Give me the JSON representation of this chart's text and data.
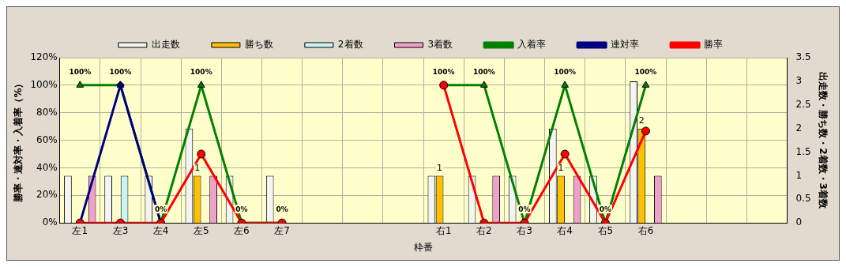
{
  "chart_data": {
    "type": "bar",
    "xlabel": "枠番",
    "ylabel": "勝率・連対率・入着率（%）",
    "y2label": "出走数・勝ち数・2着数・3着数",
    "categories": [
      "左1",
      "左3",
      "左4",
      "左5",
      "左6",
      "左7",
      null,
      null,
      null,
      "右1",
      "右2",
      "右3",
      "右4",
      "右5",
      "右6",
      null,
      null,
      null
    ],
    "series": [
      {
        "name": "出走数",
        "axis": "y2",
        "color": "#f4f4f4",
        "values": [
          1,
          1,
          1,
          2,
          1,
          1,
          null,
          null,
          null,
          1,
          1,
          1,
          2,
          1,
          3,
          null,
          null,
          null
        ]
      },
      {
        "name": "勝ち数",
        "axis": "y2",
        "color": "#ffc000",
        "values": [
          0,
          0,
          0,
          1,
          0,
          0,
          null,
          null,
          null,
          1,
          0,
          0,
          1,
          0,
          2,
          null,
          null,
          null
        ],
        "value_labels": [
          null,
          null,
          null,
          "1",
          null,
          null,
          null,
          null,
          null,
          "1",
          null,
          null,
          "1",
          null,
          "2",
          null,
          null,
          null
        ]
      },
      {
        "name": "2着数",
        "axis": "y2",
        "color": "#c8f4f4",
        "values": [
          0,
          1,
          0,
          0,
          0,
          0,
          null,
          null,
          null,
          0,
          0,
          0,
          0,
          0,
          0,
          null,
          null,
          null
        ]
      },
      {
        "name": "3着数",
        "axis": "y2",
        "color": "#f0a0cc",
        "values": [
          1,
          0,
          0,
          1,
          0,
          0,
          null,
          null,
          null,
          0,
          1,
          0,
          1,
          0,
          1,
          null,
          null,
          null
        ]
      },
      {
        "name": "入着率",
        "type": "line",
        "axis": "y",
        "color": "#008000",
        "marker": "triangle",
        "values": [
          100,
          100,
          0,
          100,
          0,
          0,
          null,
          null,
          null,
          100,
          100,
          0,
          100,
          0,
          100,
          null,
          null,
          null
        ],
        "value_labels": [
          "100%",
          "100%",
          "0%",
          "100%",
          "0%",
          "0%",
          null,
          null,
          null,
          "100%",
          "100%",
          "0%",
          "100%",
          "0%",
          "100%",
          null,
          null,
          null
        ]
      },
      {
        "name": "連対率",
        "type": "line",
        "axis": "y",
        "color": "#000080",
        "marker": "diamond",
        "values": [
          0,
          100,
          0,
          null,
          null,
          null,
          null,
          null,
          null,
          null,
          null,
          null,
          null,
          null,
          null,
          null,
          null,
          null
        ]
      },
      {
        "name": "勝率",
        "type": "line",
        "axis": "y",
        "color": "#ff0000",
        "marker": "circle",
        "values": [
          0,
          0,
          0,
          50,
          0,
          0,
          null,
          null,
          null,
          100,
          0,
          0,
          50,
          0,
          66.7,
          null,
          null,
          null
        ]
      }
    ],
    "ylim": [
      0,
      120
    ],
    "yticks": [
      {
        "value": 0,
        "label": "0%"
      },
      {
        "value": 20,
        "label": "20%"
      },
      {
        "value": 40,
        "label": "40%"
      },
      {
        "value": 60,
        "label": "60%"
      },
      {
        "value": 80,
        "label": "80%"
      },
      {
        "value": 100,
        "label": "100%"
      },
      {
        "value": 120,
        "label": "120%"
      }
    ],
    "y2lim": [
      0,
      3.5
    ],
    "y2ticks": [
      0,
      0.5,
      1,
      1.5,
      2,
      2.5,
      3,
      3.5
    ],
    "grid": true,
    "legend": "top"
  }
}
